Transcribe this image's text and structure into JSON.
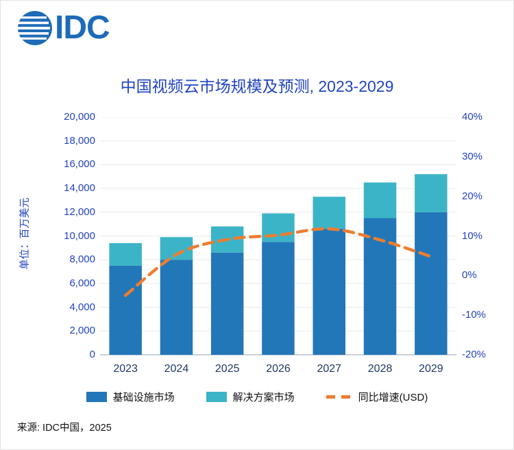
{
  "logo": {
    "text": "IDC"
  },
  "source": "来源: IDC中国，2025",
  "colors": {
    "title_text": "#2143C1",
    "axis_text": "#2143C1",
    "x_axis_text": "#1F3864",
    "logo_blue": "#1E6BB8",
    "grid_line": "#E9E9E9",
    "bar_infrastructure": "#2277B8",
    "bar_solutions": "#3CB4C7",
    "growth_line": "#ED7D31"
  },
  "chart_data": {
    "type": "bar",
    "stacked": true,
    "title": "中国视频云市场规模及预测, 2023-2029",
    "ylabel": "单位：百万美元",
    "categories": [
      "2023",
      "2024",
      "2025",
      "2026",
      "2027",
      "2028",
      "2029"
    ],
    "series": [
      {
        "name": "基础设施市场",
        "type": "bar",
        "axis": "left",
        "color": "#2277B8",
        "values": [
          7500,
          8000,
          8600,
          9500,
          10600,
          11500,
          12000
        ]
      },
      {
        "name": "解决方案市场",
        "type": "bar",
        "axis": "left",
        "color": "#3CB4C7",
        "values": [
          1900,
          1900,
          2200,
          2400,
          2700,
          3000,
          3200
        ]
      },
      {
        "name": "同比增速(USD)",
        "type": "line",
        "axis": "right",
        "color": "#ED7D31",
        "style": "dashed",
        "values": [
          -5.0,
          5.3,
          9.1,
          10.2,
          11.8,
          9.0,
          4.8
        ]
      }
    ],
    "left_axis": {
      "min": 0,
      "max": 20000,
      "step": 2000,
      "tick_labels": [
        "0",
        "2,000",
        "4,000",
        "6,000",
        "8,000",
        "10,000",
        "12,000",
        "14,000",
        "16,000",
        "18,000",
        "20,000"
      ]
    },
    "right_axis": {
      "min": -20,
      "max": 40,
      "step": 10,
      "tick_labels": [
        "-20%",
        "-10%",
        "0%",
        "10%",
        "20%",
        "30%",
        "40%"
      ]
    },
    "legend": [
      "基础设施市场",
      "解决方案市场",
      "同比增速(USD)"
    ],
    "legend_position": "bottom",
    "grid": true
  }
}
